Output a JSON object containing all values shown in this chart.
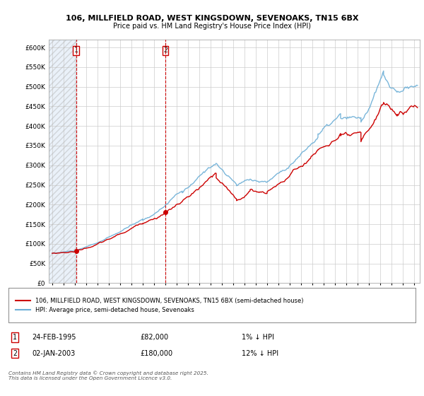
{
  "title1": "106, MILLFIELD ROAD, WEST KINGSDOWN, SEVENOAKS, TN15 6BX",
  "title2": "Price paid vs. HM Land Registry's House Price Index (HPI)",
  "legend_line1": "106, MILLFIELD ROAD, WEST KINGSDOWN, SEVENOAKS, TN15 6BX (semi-detached house)",
  "legend_line2": "HPI: Average price, semi-detached house, Sevenoaks",
  "footer": "Contains HM Land Registry data © Crown copyright and database right 2025.\nThis data is licensed under the Open Government Licence v3.0.",
  "annotation1_date": "24-FEB-1995",
  "annotation1_price": "£82,000",
  "annotation1_note": "1% ↓ HPI",
  "annotation2_date": "02-JAN-2003",
  "annotation2_price": "£180,000",
  "annotation2_note": "12% ↓ HPI",
  "hpi_color": "#6baed6",
  "price_color": "#cc0000",
  "background_color": "#ffffff",
  "grid_color": "#cccccc",
  "hatch_bg_color": "#ddeeff",
  "ylim": [
    0,
    620000
  ],
  "yticks": [
    0,
    50000,
    100000,
    150000,
    200000,
    250000,
    300000,
    350000,
    400000,
    450000,
    500000,
    550000,
    600000
  ],
  "xlim_start": 1992.7,
  "xlim_end": 2025.5,
  "sale1_x": 1995.13,
  "sale1_y": 82000,
  "sale2_x": 2003.01,
  "sale2_y": 180000,
  "xticks": [
    1993,
    1994,
    1995,
    1996,
    1997,
    1998,
    1999,
    2000,
    2001,
    2002,
    2003,
    2004,
    2005,
    2006,
    2007,
    2008,
    2009,
    2010,
    2011,
    2012,
    2013,
    2014,
    2015,
    2016,
    2017,
    2018,
    2019,
    2020,
    2021,
    2022,
    2023,
    2024,
    2025
  ]
}
